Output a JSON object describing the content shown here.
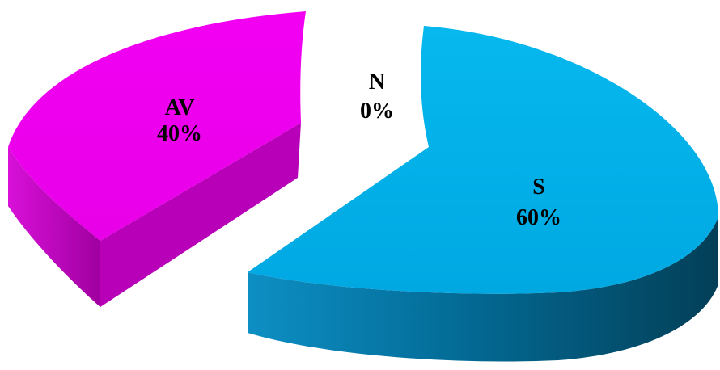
{
  "chart_data": {
    "type": "pie",
    "style": "3d-exploded",
    "slices": [
      {
        "name": "AV",
        "label": "AV",
        "value_label": "40%",
        "value": 40,
        "color": "#ee00ee"
      },
      {
        "name": "N",
        "label": "N",
        "value_label": "0%",
        "value": 0,
        "color": "#ffffff"
      },
      {
        "name": "S",
        "label": "S",
        "value_label": "60%",
        "value": 60,
        "color": "#00b0e8"
      }
    ]
  }
}
